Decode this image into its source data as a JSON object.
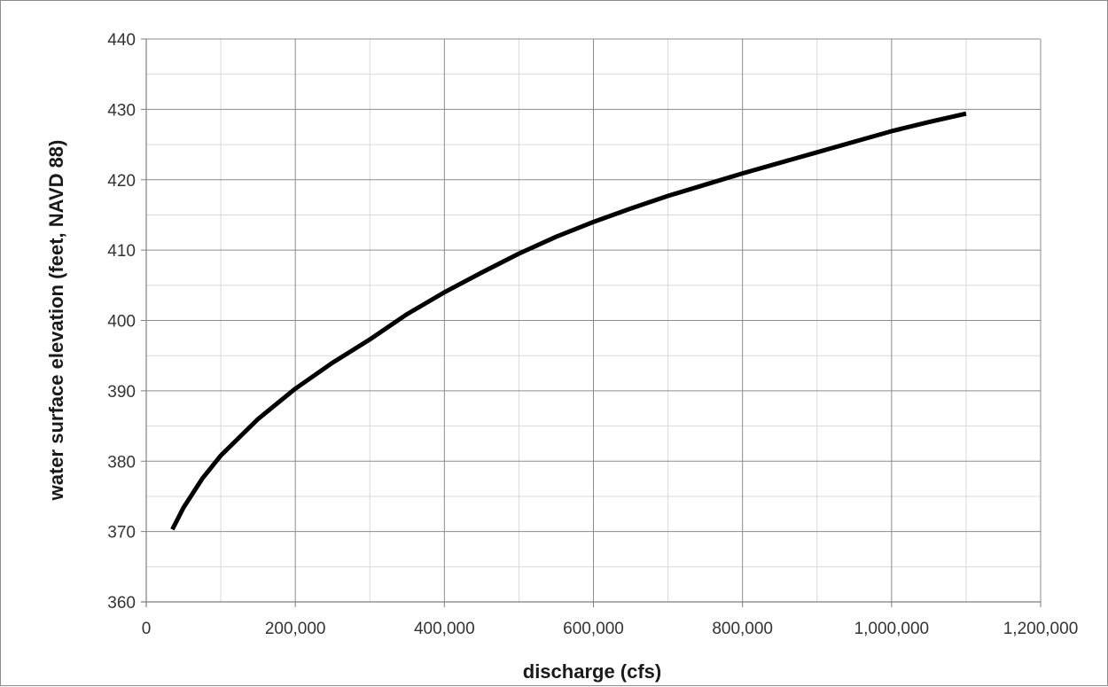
{
  "chart_data": {
    "type": "line",
    "title": "",
    "xlabel": "discharge (cfs)",
    "ylabel": "water surface elevation (feet, NAVD 88)",
    "xlim": [
      0,
      1200000
    ],
    "ylim": [
      360,
      440
    ],
    "x_tick_values": [
      0,
      200000,
      400000,
      600000,
      800000,
      1000000,
      1200000
    ],
    "x_tick_labels": [
      "0",
      "200,000",
      "400,000",
      "600,000",
      "800,000",
      "1,000,000",
      "1,200,000"
    ],
    "y_tick_values": [
      360,
      370,
      380,
      390,
      400,
      410,
      420,
      430,
      440
    ],
    "y_tick_labels": [
      "360",
      "370",
      "380",
      "390",
      "400",
      "410",
      "420",
      "430",
      "440"
    ],
    "x_minor_step": 100000,
    "y_minor_step": 5,
    "grid": true,
    "legend": "none",
    "line_color": "#000000",
    "series": [
      {
        "x": [
          35000,
          50000,
          75000,
          100000,
          150000,
          200000,
          250000,
          300000,
          350000,
          400000,
          450000,
          500000,
          550000,
          600000,
          650000,
          700000,
          750000,
          800000,
          850000,
          900000,
          950000,
          1000000,
          1050000,
          1100000
        ],
        "values": [
          370.3,
          373.4,
          377.5,
          380.8,
          386.0,
          390.3,
          394.0,
          397.3,
          400.9,
          404.0,
          406.8,
          409.5,
          411.9,
          414.0,
          415.9,
          417.7,
          419.3,
          420.9,
          422.4,
          423.9,
          425.4,
          426.9,
          428.2,
          429.4
        ]
      }
    ]
  }
}
